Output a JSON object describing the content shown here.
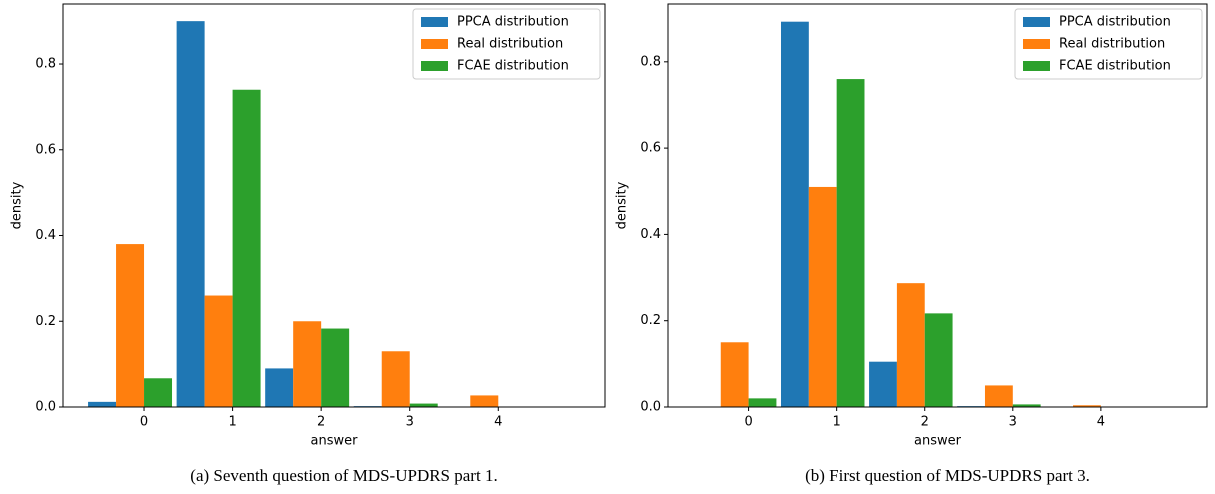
{
  "chart_data": [
    {
      "type": "bar",
      "caption": "(a) Seventh question of MDS-UPDRS part 1.",
      "xlabel": "answer",
      "ylabel": "density",
      "categories": [
        "0",
        "1",
        "2",
        "3",
        "4"
      ],
      "series": [
        {
          "name": "PPCA distribution",
          "color": "#1f77b4",
          "values": [
            0.012,
            0.9,
            0.09,
            0.002,
            0.001
          ]
        },
        {
          "name": "Real distribution",
          "color": "#ff7f0e",
          "values": [
            0.38,
            0.26,
            0.2,
            0.13,
            0.027
          ]
        },
        {
          "name": "FCAE distribution",
          "color": "#2ca02c",
          "values": [
            0.067,
            0.74,
            0.183,
            0.008,
            0.0
          ]
        }
      ],
      "ylim": [
        0,
        0.94
      ],
      "yticks": [
        {
          "value": 0,
          "label": "0.0"
        },
        0.2,
        0.4,
        0.6,
        0.8
      ],
      "legend": "upper right"
    },
    {
      "type": "bar",
      "caption": "(b) First question of MDS-UPDRS part 3.",
      "xlabel": "answer",
      "ylabel": "density",
      "categories": [
        "0",
        "1",
        "2",
        "3",
        "4"
      ],
      "series": [
        {
          "name": "PPCA distribution",
          "color": "#1f77b4",
          "values": [
            0.001,
            0.893,
            0.105,
            0.002,
            0.0
          ]
        },
        {
          "name": "Real distribution",
          "color": "#ff7f0e",
          "values": [
            0.15,
            0.51,
            0.287,
            0.05,
            0.004
          ]
        },
        {
          "name": "FCAE distribution",
          "color": "#2ca02c",
          "values": [
            0.02,
            0.76,
            0.217,
            0.006,
            0.0
          ]
        }
      ],
      "ylim": [
        0,
        0.934
      ],
      "yticks": [
        {
          "value": 0,
          "label": "0.0"
        },
        0.2,
        0.4,
        0.6,
        0.8
      ],
      "legend": "upper right"
    }
  ]
}
